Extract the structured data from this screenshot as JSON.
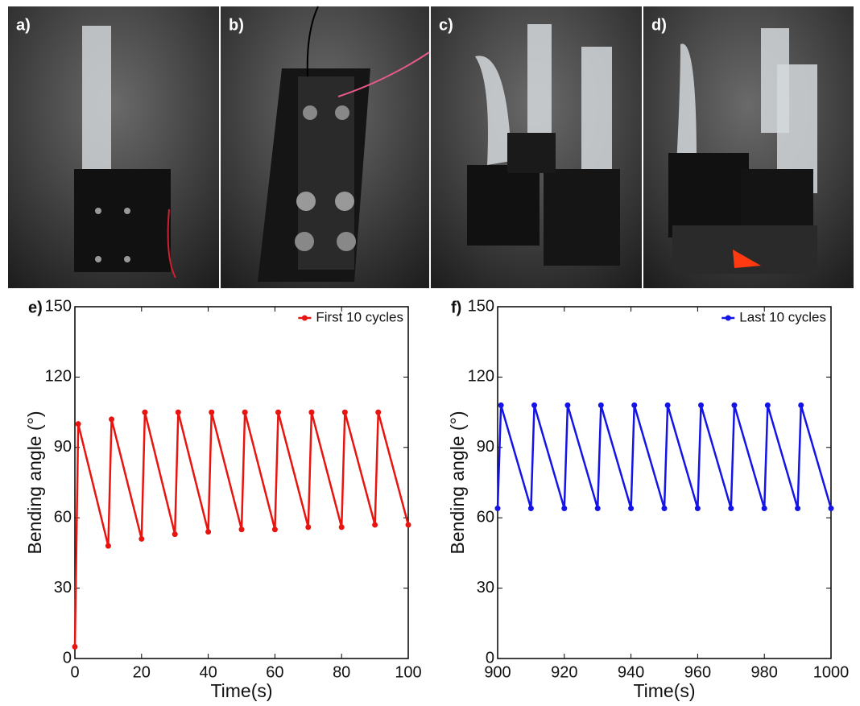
{
  "photo_panels": [
    "a)",
    "b)",
    "c)",
    "d)"
  ],
  "chart_data": [
    {
      "type": "line",
      "panel": "e)",
      "xlabel": "Time(s)",
      "ylabel": "Bending angle (°)",
      "x": [
        0,
        1,
        10,
        11,
        20,
        21,
        30,
        31,
        40,
        41,
        50,
        51,
        60,
        61,
        70,
        71,
        80,
        81,
        90,
        91,
        100
      ],
      "series": [
        {
          "name": "First 10 cycles",
          "color": "#e8140f",
          "values": [
            5,
            100,
            48,
            102,
            51,
            105,
            53,
            105,
            54,
            105,
            55,
            105,
            55,
            105,
            56,
            105,
            56,
            105,
            57,
            105,
            57
          ]
        }
      ],
      "xlim": [
        0,
        100
      ],
      "xticks": [
        0,
        20,
        40,
        60,
        80,
        100
      ],
      "ylim": [
        0,
        150
      ],
      "yticks": [
        0,
        30,
        60,
        90,
        120,
        150
      ],
      "legend": "upper right"
    },
    {
      "type": "line",
      "panel": "f)",
      "xlabel": "Time(s)",
      "ylabel": "Bending angle (°)",
      "x": [
        900,
        901,
        910,
        911,
        920,
        921,
        930,
        931,
        940,
        941,
        950,
        951,
        960,
        961,
        970,
        971,
        980,
        981,
        990,
        991,
        1000
      ],
      "series": [
        {
          "name": "Last 10 cycles",
          "color": "#1414e6",
          "values": [
            64,
            108,
            64,
            108,
            64,
            108,
            64,
            108,
            64,
            108,
            64,
            108,
            64,
            108,
            64,
            108,
            64,
            108,
            64,
            108,
            64
          ]
        }
      ],
      "xlim": [
        900,
        1000
      ],
      "xticks": [
        900,
        920,
        940,
        960,
        980,
        1000
      ],
      "ylim": [
        0,
        150
      ],
      "yticks": [
        0,
        30,
        60,
        90,
        120,
        150
      ],
      "legend": "upper right"
    }
  ]
}
